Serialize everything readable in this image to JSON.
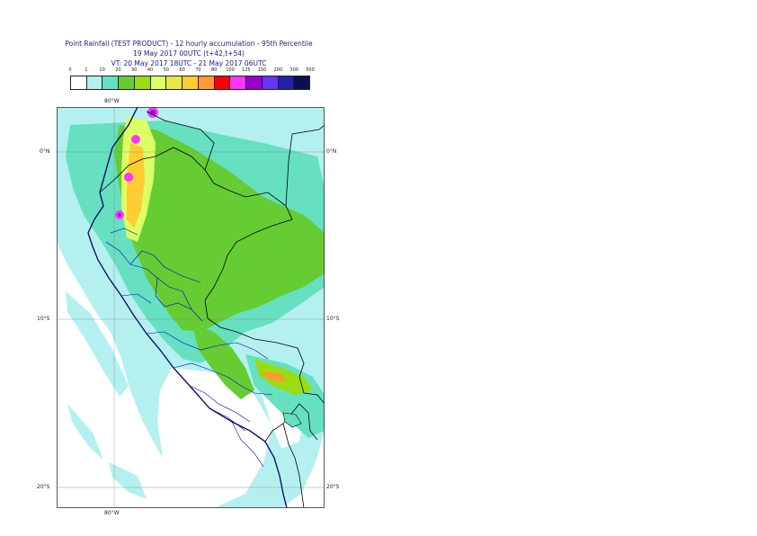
{
  "title": {
    "line1": "Point Rainfall (TEST PRODUCT) - 12 hourly accumulation - 95th Percentile",
    "line2": "19 May 2017 00UTC (t+42,t+54)",
    "line3": "VT: 20 May 2017 18UTC - 21 May 2017 06UTC"
  },
  "legend": {
    "labels": [
      "0",
      "1",
      "10",
      "20",
      "30",
      "40",
      "50",
      "60",
      "70",
      "80",
      "100",
      "125",
      "150",
      "200",
      "300",
      "500"
    ],
    "colors": [
      "#ffffff",
      "#b4f0f0",
      "#66e0c0",
      "#66cc33",
      "#99dd11",
      "#ddff66",
      "#e8e64a",
      "#ffcc33",
      "#ff9933",
      "#ff0000",
      "#ff33ff",
      "#9900cc",
      "#6633ff",
      "#2222aa",
      "#0d0d55"
    ]
  },
  "map": {
    "lon_label_top": "80°W",
    "lon_label_bottom": "80°W",
    "lat_labels": [
      "0°N",
      "10°S",
      "20°S"
    ],
    "colors": {
      "ocean": "#ffffff",
      "light_rain": "#b4f0f0",
      "moderate_rain": "#66e0c0",
      "heavy_rain": "#99dd11",
      "coast": "#12126e",
      "border": "#000000",
      "admin": "#0000cc",
      "grid": "#888888"
    }
  }
}
